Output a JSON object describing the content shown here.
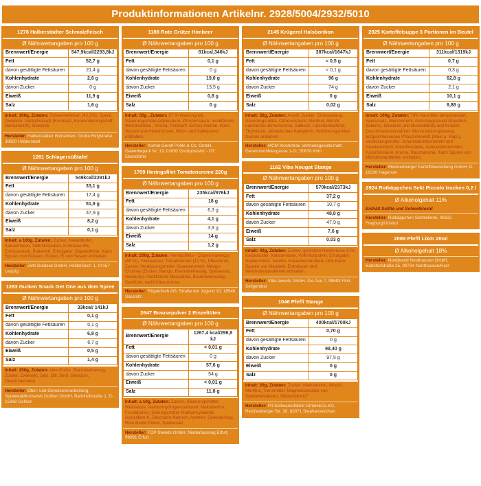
{
  "header": {
    "title": "Produktinformationen Artikelnr. 2928/5004/2932/5010"
  },
  "labels": {
    "nutrition_header": "Ø Nährwertangaben pro 100 g",
    "rows": [
      "Brennwert/Energie",
      "Fett",
      "davon gesättigte Fettsäuren",
      "Kohlenhydrate",
      "davon Zucker",
      "Eiweiß",
      "Salz"
    ],
    "hersteller_label": "Hersteller:"
  },
  "columns": [
    [
      {
        "type": "nutrition",
        "title": "1278 Halberstädter Schmalzfleisch",
        "values": [
          "547,9kcal/2293,8kJ",
          "52,7 g",
          "21,4 g",
          "2,6 g",
          "0 g",
          "11,9 g",
          "1,6 g"
        ],
        "inhalt_lead": "Inhalt: 300g, Zutaten:",
        "inhalt_text": " Schweinefleisch (42,1%), Speck, Zwiebeln, Nitritpökelsalz (Kochsalz, Konservierungsstoff: Natriumnitrit), Gewürze",
        "hersteller": " Halberstädter Würstchen, Große Ringstraße, 38820 Halberstadt"
      },
      {
        "type": "nutrition",
        "title": "1261 Schlagersüßtafel",
        "values": [
          "549kcal/2291kJ",
          "33,1 g",
          "17,4 g",
          "51,9 g",
          "47,9 g",
          "8,2 g",
          "0,1 g"
        ],
        "inhalt_lead": "Inhalt: a 100g, Zutaten:",
        "inhalt_text": " Zucker, Kakaobutter, Kakaomasse, Vollmilchpulver, Erdnüsse 6%, Erdnussmark, Butterfett, Emulgator: Sojalecithine. Kann Spuren von Nüssen, Gluten, Ei und Sesam enthalten.",
        "hersteller": " Zetti Goldeck GmbH, Hölderlinstr. 1, 04157 Leipzig"
      },
      {
        "type": "nutrition",
        "title": "1283 Gurken Snack Get One aus dem Spree",
        "values": [
          "33kcal/ 141kJ",
          "0,1 g",
          "0,1 g",
          "6,8 g",
          "6,7 g",
          "0,5 g",
          "1,4 g"
        ],
        "inhalt_lead": "Inhalt: 250g, Zutaten:",
        "inhalt_text": " eine Gurke, Branntweinessig, Zucker, Zwiebeln, Salz, Dill, Senf, Gewürze, Gewürzextrakte",
        "hersteller": " Obst- und Gemüseverarbeitung, Spreewaldkonserve Golßen GmbH, Bahnhofstraße 1, D-15938 Golßen"
      }
    ],
    [
      {
        "type": "nutrition",
        "title": "1188 Rote Grütze Himbeer",
        "values": [
          "81kcal,346kJ",
          "0,1 g",
          "0 g",
          "19,0 g",
          "13,5 g",
          "0,8 g",
          "0 g"
        ],
        "inhalt_lead": "Inhalt: 50g , Zutaten:",
        "inhalt_text": " 97 % Weizengrieß , Säuerungsmittel Adipinsäure, Zitronensäure, modifizierte Weizenstärke , Aroma, Farbstoff: Echtes Karmin. Kann Spuren von Haselnüssen, Milch- und Volleipulver enthalten.",
        "hersteller": " Komet Gerolf Pöhle & Co. GmbH, Gewerbepark Nr. 13, 02692 Großpostwitz - OT Ebendörfel"
      },
      {
        "type": "nutrition",
        "title": "1709 Heringsfilet Tomatencreme 220g",
        "values": [
          "235kcal/976kJ",
          "18 g",
          "6,3 g",
          "4,1 g",
          "3,9 g",
          "14 g",
          "1,2 g"
        ],
        "inhalt_lead": "Inhalt: 200g, Zutaten:",
        "inhalt_text": " Heringsfilets - Clupea harengus (60 %), Trinkwasser, Tomatenmark (12 %), Pflanzenöl, Zucker, Verdickungsmittel: Guarkernmehl; Mango-Chutney (Zucker, Mango, Branntweinessig, Speisesalz, Gewürze), modifizierte Maisstärke, Branntweinessig, Gewürze, natürliches Aroma",
        "hersteller": " Rügenfisch AG, Straße der Jugend 10, 18546 Sassnitz"
      },
      {
        "type": "nutrition",
        "title": "2647 Brausepulver 2 Einzeltüten",
        "values": [
          "1267,4 kcal/296,8 kJ",
          "< 0,01 g",
          "0 g",
          "57,6 g",
          "54 g",
          "< 0,01 g",
          "11,8 g"
        ],
        "inhalt_lead": "Inhalt: a 10g, Zutaten:",
        "inhalt_text": " Zucker, Säuerungsmittel: Weinsäure, Natriumhydrogencarbonat; Maltodextrin, Fruchtpulver, Süßungsmittel: Natriumcyclamat, Acesulfam-K, Saccharin-Natrium, Aromen, Glukosesirup, Rote Beete Pulver, Speisesalz",
        "hersteller": " TOP Sweets GmbH, Niederlassung Erfurt, 99091 Erfurt"
      }
    ],
    [
      {
        "type": "nutrition",
        "title": "2145 Krügerol Halsbonbon",
        "values": [
          "387kcal/1647kJ",
          "< 0,5 g",
          "< 0,1 g",
          "96 g",
          "74 g",
          "0 g",
          "0,02 g"
        ],
        "inhalt_lead": "Inhalt: 50g, Zutaten:",
        "inhalt_text": " Anisöl, Zucker, Glukosesirup, Säuerungsmittel, Citronensäure, Menthol, Minzöl, natürliches Birnenaroma, Salbeiöl, Latschenkieferöl, Thymianöl, chinesisches Kampferöl, Verdickungsmittel Gummi arabicum",
        "hersteller": " MCM Klosterfrau Vertriebsgesellschaft, Gereonsmühlengasse 1-11, 50670 Köln"
      },
      {
        "type": "nutrition",
        "title": "1162 Viba Nougat Stange",
        "values": [
          "570kcal/2373kJ",
          "37,2 g",
          "10,7 g",
          "48,8 g",
          "47,9 g",
          "7,6 g",
          "0,03 g"
        ],
        "inhalt_lead": "Inhalt: 40g, Zutaten:",
        "inhalt_text": " Zucker, geröstete Haselnüsse 37%, Kakaobutter, Kakaomasse, Vollmilchpulver, Emulgator: Sojalecithine. Vanillin. Kakaobestandteile 14% Kann Spuren von Mandeln, Erdnüssen und Weizenbestandteilen enthalten.",
        "hersteller": " Viba sweets GmbH, Die Aue 7, 98593 Floh-Seligenthal"
      },
      {
        "type": "nutrition",
        "title": "1046 Pfeffi Stange",
        "values": [
          "400kcal/1700kJ",
          "0,70 g",
          "0 g",
          "98,40 g",
          "97,5 g",
          "0 g",
          "0 g"
        ],
        "inhalt_lead": "Inhalt: 20g, Zutaten:",
        "inhalt_text": " Zucker, Maltodextrin, Minzöl, Menthol, Trennmittel: Magnesiumsalze von Speisefettsäuren; Siliciumdioxid\"",
        "hersteller": " Pit Süßwarenfabrik GmbH&Co.KG, Reichenberger Str. 36, 83071 Stephanskirchen"
      }
    ],
    [
      {
        "type": "nutrition",
        "title": "2925 Kartoffelsuppe 3 Portionen im Beutel",
        "values": [
          "311kcal/1319kJ",
          "0,7 g",
          "0,3 g",
          "62,8 g",
          "2,1 g",
          "10,1 g",
          "8,88 g"
        ],
        "inhalt_lead": "Inhalt: 100g, Zutaten:",
        "inhalt_text": " 76% Kartoffeln dehydratisiert, Speisesalz, Weizenmehl, Gemüsegranulat (Karotten, Sellerie), Gewürze (mit Muskatblüte) und Kräuter, Geschmacksverstärker: Mononatriumglutamat; aufgeschlossenes Pflanzeneiweiß (Mais u. Raps), Verdickungsmittel: Johannisbrotkernmehl und Guarkernmehl; Kartoffelstärke, Antioxidationsmittel Ascorbinsäure; Aroma, Raucharoma. Kann Spuren von Milchbestandteilen enthalten.",
        "hersteller": " Mecklenburger Kartoffelveredlung GmbH, D-19230 Hagenow"
      },
      {
        "type": "alcohol",
        "title": "2924 Rotkäppchen Sekt Piccolo trocken 0,2 l",
        "alcohol": "Ø Alkoholgehalt 11%",
        "note": "Enthält Sulfite und Schwefeloxid",
        "hersteller": " Rotkäppchen Sektkellerei, 06632 Freyburg/Unstrut"
      },
      {
        "type": "alcohol",
        "title": "2089 Pfeffi Likör 20ml",
        "alcohol": "Ø Alkoholgehalt 18%",
        "note": "",
        "hersteller": " Nordbrand Nordhausen GmbH, Bahnhofstraße 25, 99734 Nordhausen/Harz"
      }
    ]
  ]
}
